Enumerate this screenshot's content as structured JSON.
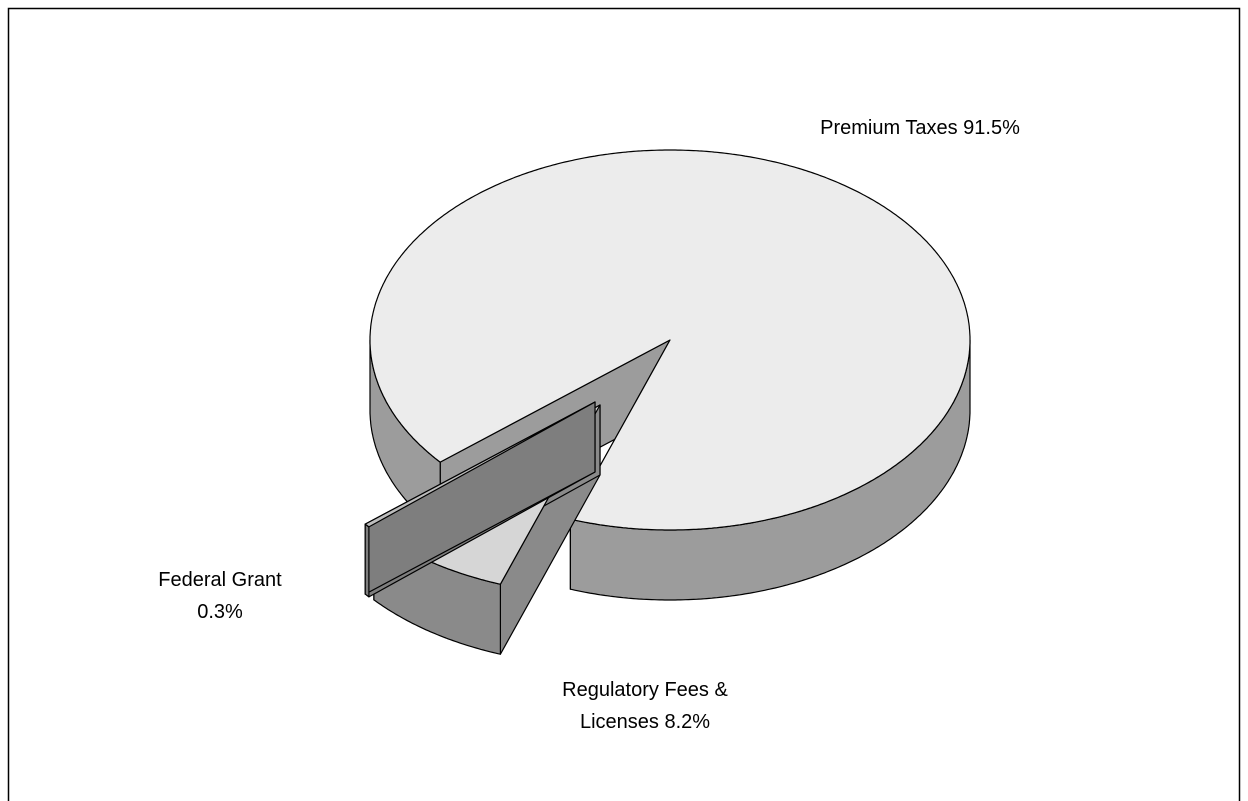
{
  "chart_data": {
    "type": "pie3d",
    "categories": [
      "Premium Taxes",
      "Regulatory Fees & Licenses",
      "Federal Grant"
    ],
    "values": [
      91.5,
      8.2,
      0.3
    ],
    "value_labels": [
      "91.5%",
      "8.2%",
      "0.3%"
    ],
    "colors": [
      "#ececec",
      "#d6d6d6",
      "#bdbdbd"
    ],
    "side_colors": [
      "#9c9c9c",
      "#8a8a8a",
      "#7e7e7e"
    ]
  }
}
